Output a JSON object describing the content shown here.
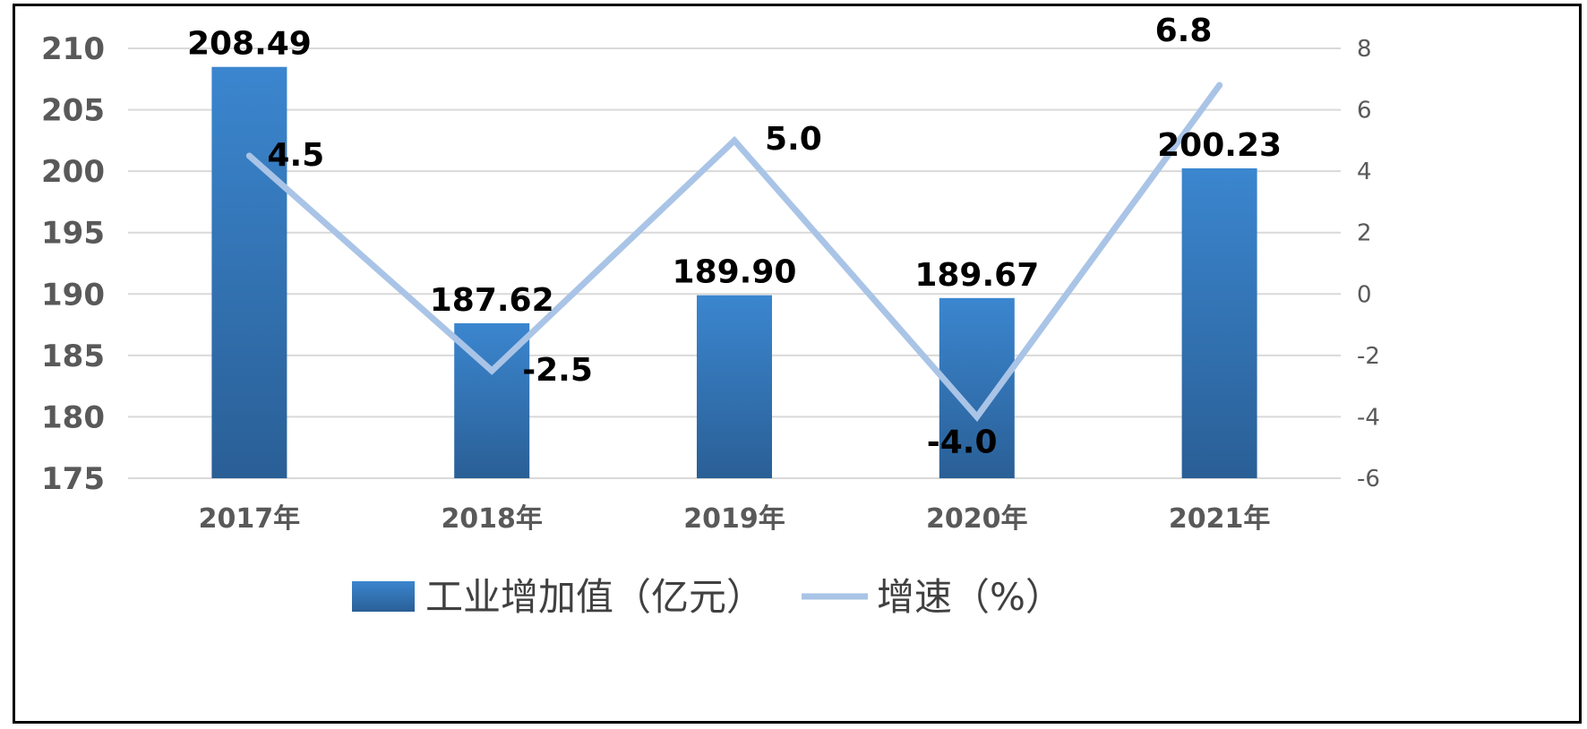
{
  "chart_data": {
    "type": "bar",
    "categories": [
      "2017年",
      "2018年",
      "2019年",
      "2020年",
      "2021年"
    ],
    "series": [
      {
        "name": "工业增加值（亿元）",
        "type": "bar",
        "axis": "left",
        "values": [
          208.49,
          187.62,
          189.9,
          189.67,
          200.23
        ],
        "labels": [
          "208.49",
          "187.62",
          "189.90",
          "189.67",
          "200.23"
        ],
        "color": "#2E75B6"
      },
      {
        "name": "增速（%）",
        "type": "line",
        "axis": "right",
        "values": [
          4.5,
          -2.5,
          5.0,
          -4.0,
          6.8
        ],
        "labels": [
          "4.5",
          "-2.5",
          "5.0",
          "-4.0",
          "6.8"
        ],
        "color": "#A9C4E6"
      }
    ],
    "ylim": [
      175,
      210
    ],
    "yticks": [
      "175",
      "180",
      "185",
      "190",
      "195",
      "200",
      "205",
      "210"
    ],
    "y2lim": [
      -6,
      8
    ],
    "y2ticks": [
      "-6",
      "-4",
      "-2",
      "0",
      "2",
      "4",
      "6",
      "8"
    ],
    "grid": true,
    "legend_position": "bottom"
  }
}
